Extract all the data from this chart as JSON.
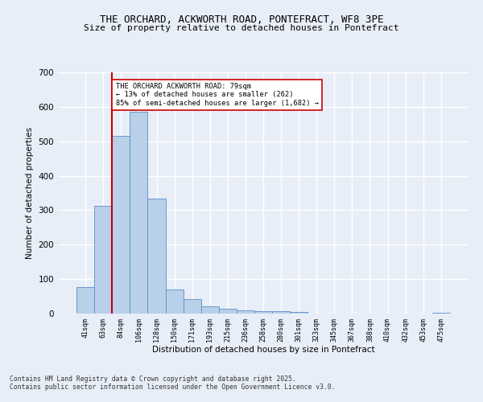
{
  "title_line1": "THE ORCHARD, ACKWORTH ROAD, PONTEFRACT, WF8 3PE",
  "title_line2": "Size of property relative to detached houses in Pontefract",
  "xlabel": "Distribution of detached houses by size in Pontefract",
  "ylabel": "Number of detached properties",
  "categories": [
    "41sqm",
    "63sqm",
    "84sqm",
    "106sqm",
    "128sqm",
    "150sqm",
    "171sqm",
    "193sqm",
    "215sqm",
    "236sqm",
    "258sqm",
    "280sqm",
    "301sqm",
    "323sqm",
    "345sqm",
    "367sqm",
    "388sqm",
    "410sqm",
    "432sqm",
    "453sqm",
    "475sqm"
  ],
  "values": [
    78,
    312,
    515,
    585,
    333,
    70,
    42,
    20,
    15,
    10,
    8,
    8,
    5,
    0,
    0,
    0,
    0,
    0,
    0,
    0,
    2
  ],
  "bar_color": "#b8d0ea",
  "bar_edge_color": "#5b8ec4",
  "vline_color": "#cc0000",
  "annotation_text": "THE ORCHARD ACKWORTH ROAD: 79sqm\n← 13% of detached houses are smaller (262)\n85% of semi-detached houses are larger (1,682) →",
  "annotation_box_color": "#ffffff",
  "annotation_box_edge": "#cc0000",
  "ylim": [
    0,
    700
  ],
  "yticks": [
    0,
    100,
    200,
    300,
    400,
    500,
    600,
    700
  ],
  "background_color": "#e8eef8",
  "grid_color": "#ffffff",
  "footer_line1": "Contains HM Land Registry data © Crown copyright and database right 2025.",
  "footer_line2": "Contains public sector information licensed under the Open Government Licence v3.0."
}
